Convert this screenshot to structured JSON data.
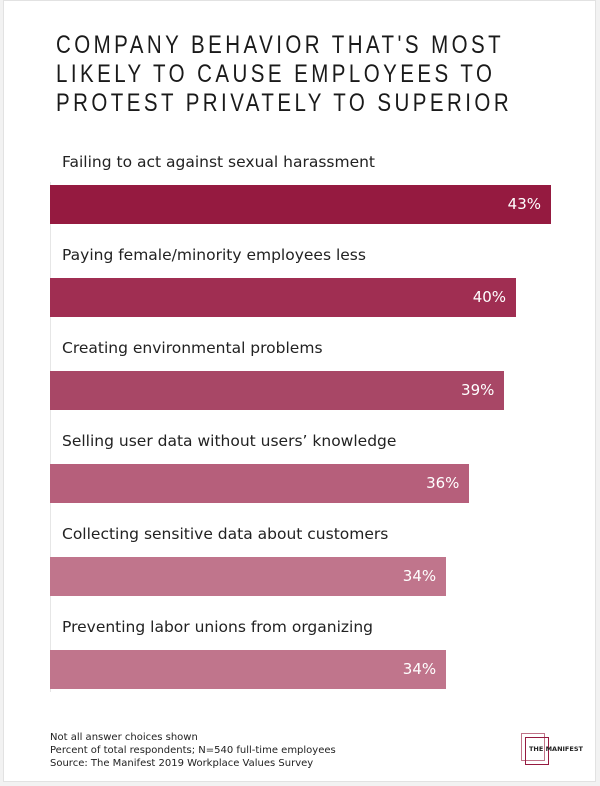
{
  "chart_data": {
    "type": "bar",
    "orientation": "horizontal",
    "title_lines": [
      "COMPANY BEHAVIOR THAT'S MOST",
      "LIKELY TO CAUSE EMPLOYEES TO",
      "PROTEST PRIVATELY TO SUPERIOR"
    ],
    "categories": [
      "Failing to act against sexual harassment",
      "Paying female/minority employees less",
      "Creating environmental problems",
      "Selling user data without users’ knowledge",
      "Collecting sensitive data about customers",
      "Preventing labor unions from organizing"
    ],
    "values": [
      43,
      40,
      39,
      36,
      34,
      34
    ],
    "value_labels": [
      "43%",
      "40%",
      "39%",
      "36%",
      "34%",
      "34%"
    ],
    "colors": [
      "#951a40",
      "#a02e52",
      "#a84766",
      "#b65f7b",
      "#c0758c",
      "#c0758c"
    ],
    "xlim": [
      0,
      43
    ],
    "grid": false
  },
  "notes": [
    "Not all answer choices shown",
    "Percent of total respondents; N=540 full-time employees",
    "Source: The Manifest 2019 Workplace Values Survey"
  ],
  "logo": {
    "text": "THE MANIFEST"
  }
}
